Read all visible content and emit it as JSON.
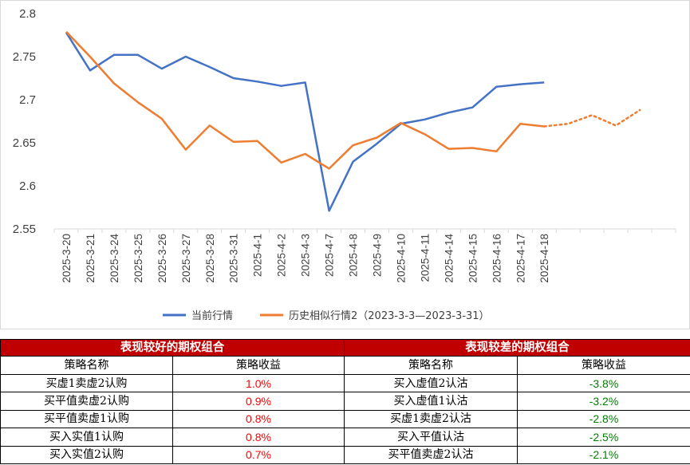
{
  "chart_data": {
    "type": "line",
    "categories": [
      "2025-3-20",
      "2025-3-21",
      "2025-3-24",
      "2025-3-25",
      "2025-3-26",
      "2025-3-27",
      "2025-3-28",
      "2025-3-31",
      "2025-4-1",
      "2025-4-2",
      "2025-4-3",
      "2025-4-7",
      "2025-4-8",
      "2025-4-9",
      "2025-4-10",
      "2025-4-11",
      "2025-4-14",
      "2025-4-15",
      "2025-4-16",
      "2025-4-17",
      "2025-4-18",
      "",
      "",
      "",
      "",
      ""
    ],
    "ylim": [
      2.55,
      2.8
    ],
    "yticks": [
      "2.55",
      "2.6",
      "2.65",
      "2.7",
      "2.75",
      "2.8"
    ],
    "grid": false,
    "series": [
      {
        "name": "当前行情",
        "color": "#4472c4",
        "style": "solid",
        "values": [
          2.778,
          2.734,
          2.752,
          2.752,
          2.736,
          2.75,
          2.738,
          2.725,
          2.721,
          2.716,
          2.72,
          2.571,
          2.628,
          2.649,
          2.672,
          2.677,
          2.685,
          2.691,
          2.715,
          2.718,
          2.72,
          null,
          null,
          null,
          null,
          null
        ]
      },
      {
        "name": "历史相似行情2（2023-3-3—2023-3-31）",
        "color": "#ed7d31",
        "style": "solid",
        "values": [
          2.779,
          2.75,
          2.719,
          2.697,
          2.678,
          2.642,
          2.67,
          2.651,
          2.652,
          2.627,
          2.637,
          2.62,
          2.647,
          2.656,
          2.673,
          2.66,
          2.643,
          2.644,
          2.64,
          2.672,
          2.669,
          2.672,
          2.682,
          2.67,
          2.688,
          null
        ],
        "dotted_from_index": 20
      }
    ],
    "legend": "bottom"
  },
  "tables": {
    "good": {
      "title": "表现较好的期权组合",
      "col_name": "策略名称",
      "col_value": "策略收益",
      "value_color": "#ff0000",
      "rows": [
        {
          "name": "买虚1卖虚2认购",
          "value": "1.0%"
        },
        {
          "name": "买平值卖虚2认购",
          "value": "0.9%"
        },
        {
          "name": "买平值卖虚1认购",
          "value": "0.8%"
        },
        {
          "name": "买入实值1认购",
          "value": "0.8%"
        },
        {
          "name": "买入实值2认购",
          "value": "0.7%"
        }
      ]
    },
    "bad": {
      "title": "表现较差的期权组合",
      "col_name": "策略名称",
      "col_value": "策略收益",
      "value_color": "#008000",
      "rows": [
        {
          "name": "买入虚值2认沽",
          "value": "-3.8%"
        },
        {
          "name": "买入虚值1认沽",
          "value": "-3.2%"
        },
        {
          "name": "买虚1卖虚2认沽",
          "value": "-2.8%"
        },
        {
          "name": "买入平值认沽",
          "value": "-2.5%"
        },
        {
          "name": "买平值卖虚2认沽",
          "value": "-2.1%"
        }
      ]
    }
  }
}
